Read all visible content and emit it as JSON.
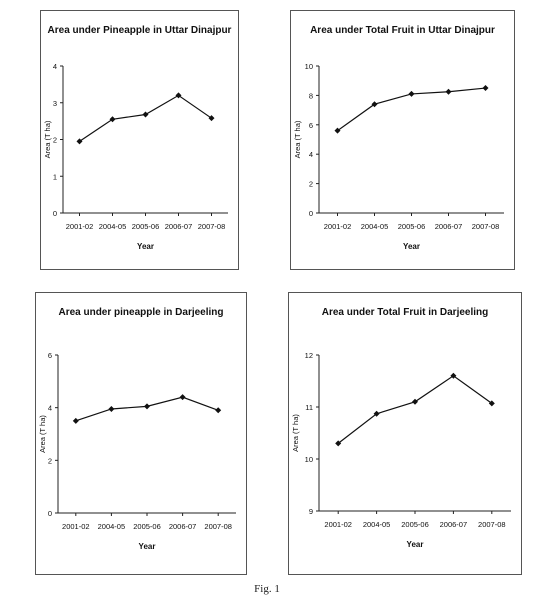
{
  "figure_caption": "Fig. 1",
  "chart_data": [
    {
      "type": "line",
      "title": "Area under  Pineapple in Uttar Dinajpur",
      "xlabel": "Year",
      "ylabel": "Area (T ha)",
      "categories": [
        "2001-02",
        "2004-05",
        "2005-06",
        "2006-07",
        "2007-08"
      ],
      "values": [
        1.95,
        2.55,
        2.68,
        3.2,
        2.58
      ],
      "ylim": [
        0,
        4
      ],
      "yticks": [
        "0",
        "1",
        "2",
        "3",
        "4"
      ],
      "grid": false,
      "legend": "none",
      "marker": "diamond",
      "line_color": "#111111"
    },
    {
      "type": "line",
      "title": "Area under Total Fruit in Uttar Dinajpur",
      "xlabel": "Year",
      "ylabel": "Area (T ha)",
      "categories": [
        "2001-02",
        "2004-05",
        "2005-06",
        "2006-07",
        "2007-08"
      ],
      "values": [
        5.6,
        7.4,
        8.1,
        8.25,
        8.5
      ],
      "ylim": [
        0,
        10
      ],
      "yticks": [
        "0",
        "2",
        "4",
        "6",
        "8",
        "10"
      ],
      "grid": false,
      "legend": "none",
      "marker": "diamond",
      "line_color": "#111111"
    },
    {
      "type": "line",
      "title": "Area under pineapple in Darjeeling",
      "xlabel": "Year",
      "ylabel": "Area (T ha)",
      "categories": [
        "2001-02",
        "2004-05",
        "2005-06",
        "2006-07",
        "2007-08"
      ],
      "values": [
        3.5,
        3.95,
        4.05,
        4.4,
        3.9
      ],
      "ylim": [
        0,
        6
      ],
      "yticks": [
        "0",
        "2",
        "4",
        "6"
      ],
      "grid": false,
      "legend": "none",
      "marker": "diamond",
      "line_color": "#111111"
    },
    {
      "type": "line",
      "title": "Area under Total Fruit in Darjeeling",
      "xlabel": "Year",
      "ylabel": "Area (T ha)",
      "categories": [
        "2001-02",
        "2004-05",
        "2005-06",
        "2006-07",
        "2007-08"
      ],
      "values": [
        10.3,
        10.87,
        11.1,
        11.6,
        11.07
      ],
      "ylim": [
        9,
        12
      ],
      "yticks": [
        "9",
        "10",
        "11",
        "12"
      ],
      "grid": false,
      "legend": "none",
      "marker": "diamond",
      "line_color": "#111111"
    }
  ]
}
